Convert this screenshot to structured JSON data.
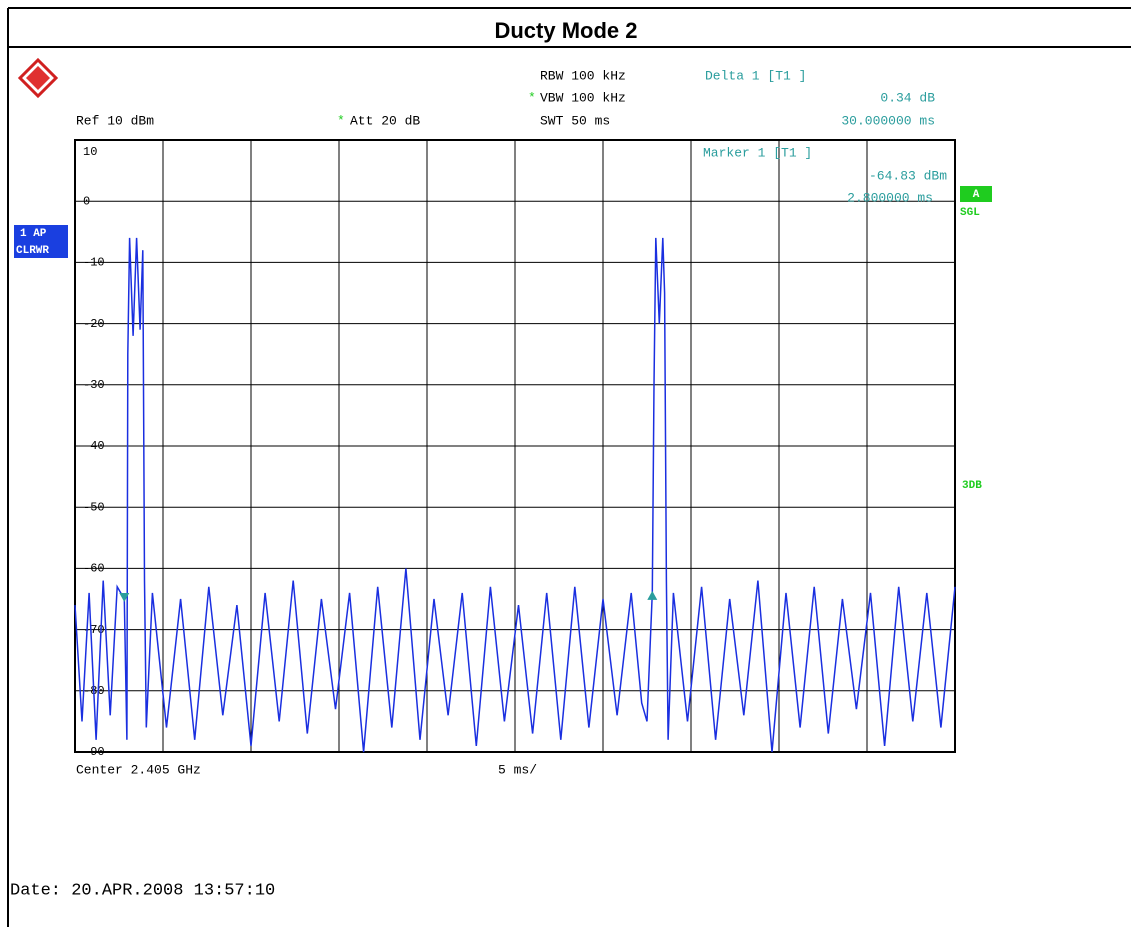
{
  "chart_data": {
    "type": "line",
    "title": "Ducty Mode 2",
    "rbw": "RBW 100 kHz",
    "vbw_star": "*",
    "vbw": "VBW 100 kHz",
    "swt": "SWT 50 ms",
    "ref": "Ref  10 dBm",
    "att_star": "*",
    "att": "Att  20 dB",
    "trace_mode": [
      "1 AP",
      "CLRWR"
    ],
    "sweep_badge": "A",
    "sweep_mode": "SGL",
    "side_note": "3DB",
    "xlabel_left": "Center 2.405 GHz",
    "xlabel_mid": "5 ms/",
    "date": "Date: 20.APR.2008  13:57:10",
    "delta": {
      "label": "Delta 1 [T1 ]",
      "value": 0.34,
      "value_label": "0.34 dB",
      "x": 30,
      "x_label": "30.000000 ms"
    },
    "marker": {
      "label": "Marker 1 [T1 ]",
      "value": -64.83,
      "value_label": "-64.83 dBm",
      "x": 2.8,
      "x_label": "2.800000 ms"
    },
    "xlim": [
      0,
      50
    ],
    "xticks": [
      0,
      5,
      10,
      15,
      20,
      25,
      30,
      35,
      40,
      45,
      50
    ],
    "ylim": [
      -90,
      10
    ],
    "yticks": [
      10,
      0,
      -10,
      -20,
      -30,
      -40,
      -50,
      -60,
      -70,
      -80,
      -90
    ],
    "grid": true,
    "series": [
      {
        "name": "Trace 1",
        "color": "#1a2fe0",
        "x": [
          0,
          0.4,
          0.8,
          1.2,
          1.6,
          2.0,
          2.4,
          2.8,
          2.95,
          3.0,
          3.1,
          3.3,
          3.5,
          3.7,
          3.85,
          3.95,
          4.05,
          4.4,
          5.2,
          6.0,
          6.8,
          7.6,
          8.4,
          9.2,
          10.0,
          10.8,
          11.6,
          12.4,
          13.2,
          14.0,
          14.8,
          15.6,
          16.4,
          17.2,
          18.0,
          18.8,
          19.6,
          20.4,
          21.2,
          22.0,
          22.8,
          23.6,
          24.4,
          25.2,
          26.0,
          26.8,
          27.6,
          28.4,
          29.2,
          30.0,
          30.8,
          31.6,
          32.2,
          32.5,
          32.8,
          32.9,
          33.0,
          33.2,
          33.4,
          33.5,
          33.6,
          33.7,
          34.0,
          34.8,
          35.6,
          36.4,
          37.2,
          38.0,
          38.8,
          39.6,
          40.4,
          41.2,
          42.0,
          42.8,
          43.6,
          44.4,
          45.2,
          46.0,
          46.8,
          47.6,
          48.4,
          49.2,
          50.0
        ],
        "values": [
          -66,
          -85,
          -64,
          -88,
          -62,
          -84,
          -63,
          -65,
          -88,
          -25,
          -6,
          -22,
          -6,
          -21,
          -8,
          -62,
          -86,
          -64,
          -86,
          -65,
          -88,
          -63,
          -84,
          -66,
          -89,
          -64,
          -85,
          -62,
          -87,
          -65,
          -83,
          -64,
          -90,
          -63,
          -86,
          -60,
          -88,
          -65,
          -84,
          -64,
          -89,
          -63,
          -85,
          -66,
          -87,
          -64,
          -88,
          -63,
          -86,
          -65,
          -84,
          -64,
          -82,
          -85,
          -64,
          -30,
          -6,
          -20,
          -6,
          -15,
          -62,
          -88,
          -64,
          -85,
          -63,
          -88,
          -65,
          -84,
          -62,
          -90,
          -64,
          -86,
          -63,
          -87,
          -65,
          -83,
          -64,
          -89,
          -63,
          -85,
          -64,
          -86,
          -63
        ]
      }
    ]
  }
}
